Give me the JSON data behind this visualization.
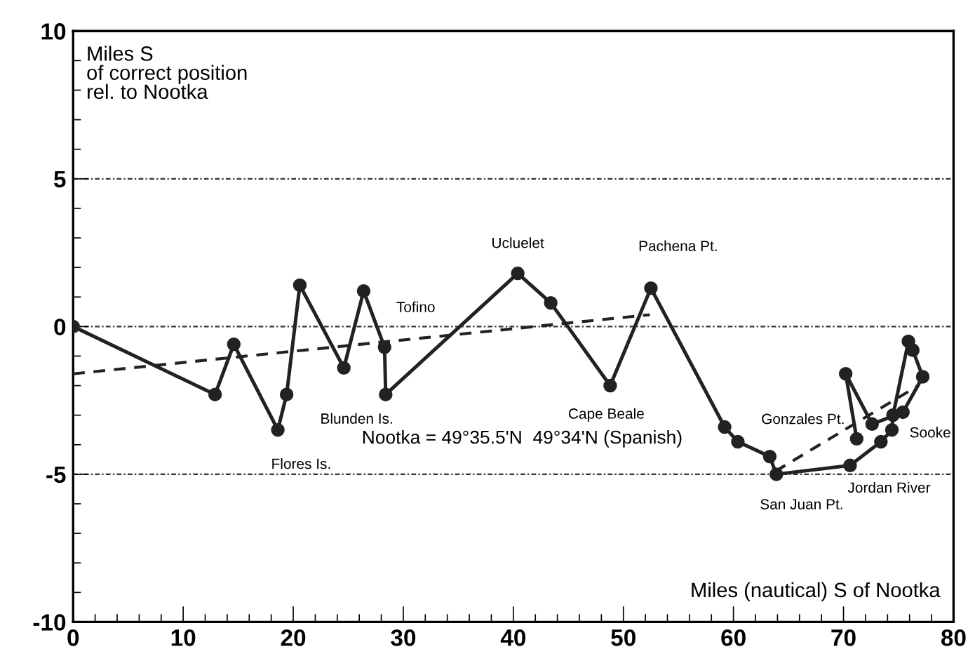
{
  "chart_data": {
    "type": "line",
    "xlabel": "Miles (nautical) S of Nootka",
    "ylabel": "Miles S\nof correct position\nrel. to Nootka",
    "series": [
      {
        "color": "#222222",
        "marker": "circle",
        "line_style": "solid",
        "x": [
          0,
          12.9,
          14.6,
          18.6,
          19.4,
          20.6,
          24.6,
          26.4,
          28.3,
          28.4,
          40.4,
          43.4,
          48.8,
          52.5,
          59.2,
          60.4,
          63.3,
          63.9,
          70.6,
          73.4,
          74.4,
          74.5,
          75.9,
          76.3,
          77.2,
          75.4,
          72.6,
          70.2,
          71.2
        ],
        "values": [
          0,
          -2.3,
          -0.6,
          -3.5,
          -2.3,
          1.4,
          -1.4,
          1.2,
          -0.7,
          -2.3,
          1.8,
          0.8,
          -2.0,
          1.3,
          -3.4,
          -3.9,
          -4.4,
          -5.0,
          -4.7,
          -3.9,
          -3.5,
          -3.0,
          -0.5,
          -0.8,
          -1.7,
          -2.9,
          -3.3,
          -1.6,
          -3.8
        ]
      },
      {
        "color": "#222222",
        "marker": "none",
        "line_style": "dashed",
        "x": [
          0,
          52.4
        ],
        "values": [
          -1.6,
          0.4
        ]
      },
      {
        "color": "#222222",
        "marker": "none",
        "line_style": "dashed",
        "x": [
          63.8,
          76.8
        ],
        "values": [
          -4.9,
          -2.0
        ]
      }
    ],
    "xlim": [
      0,
      80
    ],
    "xticks": [
      0,
      10,
      20,
      30,
      40,
      50,
      60,
      70,
      80
    ],
    "ylim": [
      -10,
      10
    ],
    "yticks": [
      -10,
      -5,
      0,
      5,
      10
    ],
    "grid": "y",
    "annotations": [
      {
        "text": "Tofino",
        "x": 28.3,
        "y": -0.7
      },
      {
        "text": "Blunden Is.",
        "x": 19.4,
        "y": -2.3
      },
      {
        "text": "Flores Is.",
        "x": 18.6,
        "y": -3.5
      },
      {
        "text": "Ucluelet",
        "x": 40.4,
        "y": 1.8
      },
      {
        "text": "Pachena Pt.",
        "x": 52.5,
        "y": 1.3
      },
      {
        "text": "Cape Beale",
        "x": 48.8,
        "y": -2.0
      },
      {
        "text": "Gonzales Pt.",
        "x": 72.6,
        "y": -3.3
      },
      {
        "text": "Sooke",
        "x": 75.4,
        "y": -2.9
      },
      {
        "text": "Jordan River",
        "x": 70.6,
        "y": -4.7
      },
      {
        "text": "San Juan Pt.",
        "x": 63.9,
        "y": -5.0
      },
      "Nootka = 49°35.5'N  49°34'N (Spanish)"
    ]
  }
}
